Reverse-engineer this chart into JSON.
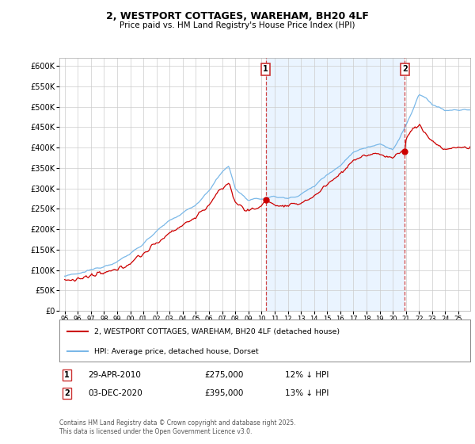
{
  "title": "2, WESTPORT COTTAGES, WAREHAM, BH20 4LF",
  "subtitle": "Price paid vs. HM Land Registry's House Price Index (HPI)",
  "ylim": [
    0,
    620000
  ],
  "ytick_vals": [
    0,
    50000,
    100000,
    150000,
    200000,
    250000,
    300000,
    350000,
    400000,
    450000,
    500000,
    550000,
    600000
  ],
  "ytick_labels": [
    "£0",
    "£50K",
    "£100K",
    "£150K",
    "£200K",
    "£250K",
    "£300K",
    "£350K",
    "£400K",
    "£450K",
    "£500K",
    "£550K",
    "£600K"
  ],
  "hpi_color": "#7ab8e8",
  "price_color": "#cc0000",
  "shade_color": "#ddeeff",
  "vline_color": "#cc3333",
  "transaction1_x": 2010.32,
  "transaction2_x": 2020.92,
  "transaction1": {
    "label": "1",
    "date": "29-APR-2010",
    "price": "£275,000",
    "hpi": "12% ↓ HPI"
  },
  "transaction2": {
    "label": "2",
    "date": "03-DEC-2020",
    "price": "£395,000",
    "hpi": "13% ↓ HPI"
  },
  "legend_line1": "2, WESTPORT COTTAGES, WAREHAM, BH20 4LF (detached house)",
  "legend_line2": "HPI: Average price, detached house, Dorset",
  "footnote": "Contains HM Land Registry data © Crown copyright and database right 2025.\nThis data is licensed under the Open Government Licence v3.0.",
  "background_color": "#ffffff",
  "grid_color": "#cccccc"
}
